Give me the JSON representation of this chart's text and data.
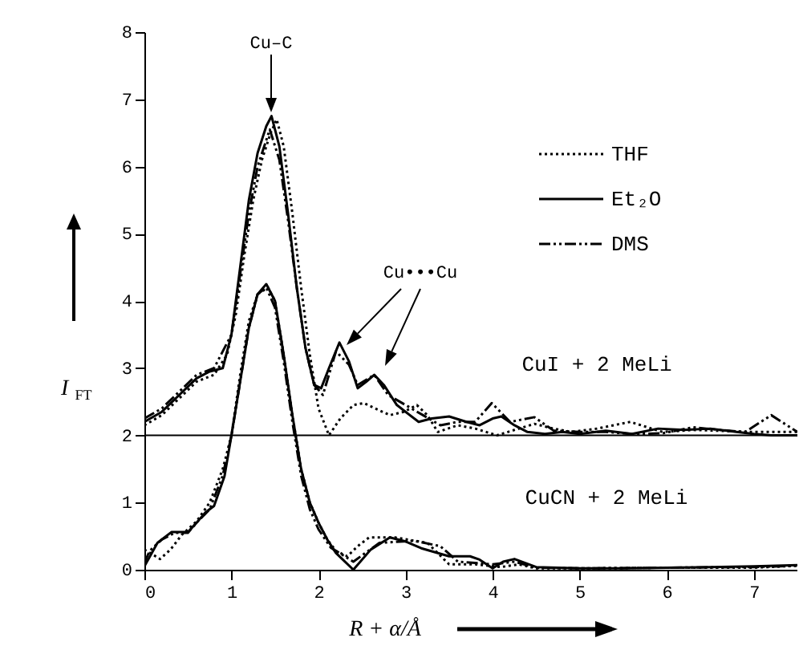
{
  "chart_data": {
    "type": "line",
    "xlabel": "R + α/Å",
    "ylabel": "I$_{FT}$",
    "annotations": [
      "Cu–C",
      "Cu•••Cu",
      "CuI + 2 MeLi",
      "CuCN + 2 MeLi"
    ],
    "xlim": [
      0,
      7.5
    ],
    "ylim": [
      0,
      8
    ],
    "xticks": [
      0,
      1,
      2,
      3,
      4,
      5,
      6,
      7
    ],
    "yticks": [
      0,
      1,
      2,
      3,
      4,
      5,
      6,
      7,
      8
    ],
    "legend": "top right",
    "ref_lines": [
      {
        "axis": "y",
        "value": 2,
        "color": "#000000"
      }
    ],
    "series": [
      {
        "name": "THF",
        "color": "#000000",
        "line_style": "dotted",
        "x": [
          0,
          0.2,
          0.4,
          0.6,
          0.8,
          0.95,
          1.05,
          1.15,
          1.25,
          1.35,
          1.45,
          1.52,
          1.6,
          1.7,
          1.8,
          1.9,
          2.0,
          2.12,
          2.25,
          2.4,
          2.52,
          2.65,
          2.82,
          2.98,
          3.13,
          3.25,
          3.37,
          3.6,
          3.8,
          4.05,
          4.25,
          4.48,
          4.7,
          4.9,
          5.2,
          5.58,
          5.95,
          6.3,
          6.56,
          7.0,
          7.5
        ],
        "values": [
          2.15,
          2.3,
          2.55,
          2.8,
          2.9,
          3.2,
          3.8,
          4.7,
          5.5,
          6.1,
          6.5,
          6.7,
          6.3,
          5.3,
          4.2,
          3.2,
          2.4,
          2.0,
          2.25,
          2.45,
          2.48,
          2.4,
          2.3,
          2.35,
          2.45,
          2.3,
          2.05,
          2.15,
          2.1,
          2.0,
          2.08,
          2.17,
          2.1,
          2.05,
          2.1,
          2.2,
          2.05,
          2.08,
          2.07,
          2.05,
          2.05
        ]
      },
      {
        "name": "Et₂O",
        "color": "#000000",
        "line_style": "solid",
        "x": [
          0,
          0.2,
          0.4,
          0.6,
          0.75,
          0.9,
          1.0,
          1.1,
          1.2,
          1.3,
          1.4,
          1.46,
          1.55,
          1.65,
          1.75,
          1.85,
          1.95,
          2.03,
          2.12,
          2.24,
          2.35,
          2.45,
          2.55,
          2.64,
          2.75,
          2.9,
          3.0,
          3.15,
          3.3,
          3.5,
          3.7,
          3.85,
          4.0,
          4.1,
          4.25,
          4.4,
          4.6,
          4.8,
          5.0,
          5.3,
          5.6,
          5.9,
          6.2,
          6.5,
          6.8,
          7.0,
          7.2,
          7.5
        ],
        "values": [
          2.2,
          2.35,
          2.6,
          2.85,
          2.95,
          3.0,
          3.5,
          4.5,
          5.5,
          6.2,
          6.6,
          6.75,
          6.3,
          5.3,
          4.2,
          3.3,
          2.75,
          2.7,
          3.0,
          3.38,
          3.1,
          2.7,
          2.8,
          2.9,
          2.75,
          2.45,
          2.35,
          2.2,
          2.25,
          2.28,
          2.2,
          2.15,
          2.25,
          2.28,
          2.15,
          2.05,
          2.02,
          2.05,
          2.02,
          2.07,
          2.02,
          2.1,
          2.08,
          2.1,
          2.05,
          2.02,
          2.0,
          2.0
        ]
      },
      {
        "name": "DMS",
        "color": "#000000",
        "line_style": "dashed",
        "x": [
          0,
          0.2,
          0.4,
          0.6,
          0.8,
          1.0,
          1.1,
          1.2,
          1.3,
          1.44,
          1.55,
          1.65,
          1.75,
          1.85,
          1.95,
          2.05,
          2.2,
          2.35,
          2.45,
          2.64,
          2.8,
          3.0,
          3.2,
          3.4,
          3.6,
          3.8,
          3.99,
          4.2,
          4.48,
          4.7,
          5.0,
          5.3,
          5.6,
          5.95,
          6.3,
          6.6,
          6.9,
          7.2,
          7.5
        ],
        "values": [
          2.25,
          2.4,
          2.65,
          2.9,
          3.0,
          3.5,
          4.4,
          5.3,
          6.0,
          6.55,
          6.1,
          5.2,
          4.2,
          3.3,
          2.75,
          2.6,
          3.25,
          3.05,
          2.75,
          2.9,
          2.6,
          2.45,
          2.3,
          2.15,
          2.2,
          2.2,
          2.48,
          2.2,
          2.27,
          2.07,
          2.05,
          2.05,
          2.02,
          2.03,
          2.12,
          2.08,
          2.05,
          2.3,
          2.05
        ]
      },
      {
        "color": "#000000",
        "line_style": "dotted",
        "x": [
          0,
          0.18,
          0.3,
          0.43,
          0.6,
          0.75,
          0.9,
          1.0,
          1.1,
          1.2,
          1.3,
          1.42,
          1.5,
          1.6,
          1.7,
          1.8,
          1.9,
          2.0,
          2.1,
          2.2,
          2.33,
          2.45,
          2.58,
          2.88,
          3.25,
          3.5,
          3.8,
          4.1,
          4.3,
          4.5,
          5.0,
          6.0,
          7.0,
          7.5
        ],
        "values": [
          0.3,
          0.16,
          0.3,
          0.52,
          0.72,
          1.0,
          1.5,
          2.0,
          2.9,
          3.7,
          4.1,
          4.2,
          4.0,
          3.2,
          2.3,
          1.5,
          1.0,
          0.7,
          0.45,
          0.28,
          0.2,
          0.35,
          0.48,
          0.48,
          0.4,
          0.08,
          0.08,
          0.04,
          0.08,
          0.02,
          0.02,
          0.03,
          0.03,
          0.06
        ]
      },
      {
        "color": "#000000",
        "line_style": "solid",
        "x": [
          0,
          0.15,
          0.31,
          0.5,
          0.6,
          0.7,
          0.8,
          0.92,
          1.0,
          1.1,
          1.2,
          1.3,
          1.4,
          1.5,
          1.6,
          1.7,
          1.8,
          1.9,
          2.0,
          2.1,
          2.2,
          2.4,
          2.6,
          2.82,
          3.0,
          3.18,
          3.5,
          3.74,
          3.85,
          4.0,
          4.12,
          4.25,
          4.5,
          5.0,
          5.5,
          6.0,
          6.5,
          7.0,
          7.5
        ],
        "values": [
          0.05,
          0.4,
          0.56,
          0.56,
          0.7,
          0.85,
          0.95,
          1.39,
          2.0,
          2.8,
          3.6,
          4.1,
          4.25,
          4.0,
          3.2,
          2.3,
          1.5,
          1.0,
          0.7,
          0.45,
          0.25,
          0.0,
          0.3,
          0.48,
          0.42,
          0.32,
          0.2,
          0.2,
          0.15,
          0.02,
          0.12,
          0.16,
          0.04,
          0.02,
          0.02,
          0.03,
          0.04,
          0.05,
          0.07
        ]
      },
      {
        "color": "#000000",
        "line_style": "dashed",
        "x": [
          0,
          0.06,
          0.2,
          0.35,
          0.5,
          0.6,
          0.75,
          0.9,
          1.0,
          1.1,
          1.2,
          1.3,
          1.4,
          1.5,
          1.6,
          1.7,
          1.8,
          1.9,
          2.0,
          2.14,
          2.4,
          2.7,
          3.1,
          3.4,
          3.6,
          4.0,
          4.25,
          4.5,
          5.0,
          6.0,
          7.0,
          7.5
        ],
        "values": [
          0.1,
          0.28,
          0.45,
          0.55,
          0.55,
          0.7,
          0.9,
          1.4,
          2.0,
          2.8,
          3.6,
          4.1,
          4.2,
          3.9,
          3.1,
          2.2,
          1.4,
          0.9,
          0.6,
          0.33,
          0.12,
          0.4,
          0.43,
          0.35,
          0.12,
          0.08,
          0.12,
          0.03,
          0.02,
          0.03,
          0.04,
          0.06
        ]
      }
    ]
  }
}
